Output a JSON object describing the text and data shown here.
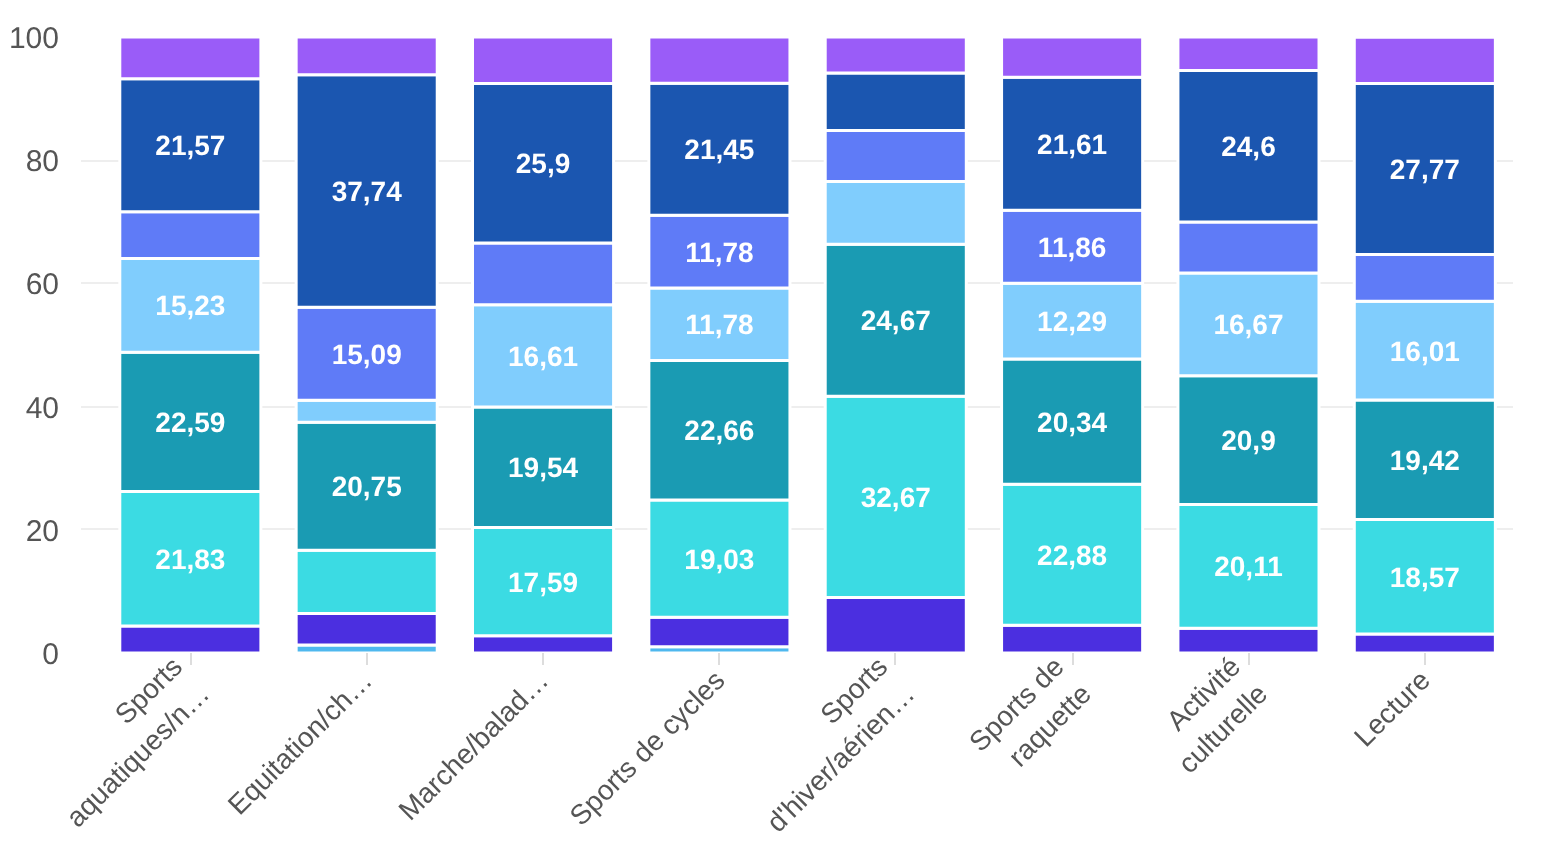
{
  "chart_data": {
    "type": "bar",
    "stacked": true,
    "categories": [
      "Sports\naquatiques/n…",
      "Equitation/ch…",
      "Marche/balad…",
      "Sports de cycles",
      "Sports\nd'hiver/aérien…",
      "Sports de\nraquette",
      "Activité\nculturelle",
      "Lecture"
    ],
    "series": [
      {
        "color": "#4fb8ee",
        "values": [
          null,
          1.3,
          null,
          1.0,
          null,
          null,
          null,
          null
        ],
        "value_labels": [
          null,
          null,
          null,
          null,
          null,
          null,
          null,
          null
        ]
      },
      {
        "color": "#4b2fe0",
        "values": [
          4.4,
          5.1,
          2.8,
          4.8,
          9.0,
          4.5,
          4.0,
          3.1
        ],
        "value_labels": [
          null,
          null,
          null,
          null,
          null,
          null,
          null,
          null
        ]
      },
      {
        "color": "#3bdbe3",
        "values": [
          21.83,
          10.3,
          17.59,
          19.03,
          32.67,
          22.88,
          20.11,
          18.57
        ],
        "value_labels": [
          "21,83",
          null,
          "17,59",
          "19,03",
          "32,67",
          "22,88",
          "20,11",
          "18,57"
        ]
      },
      {
        "color": "#1a9bb3",
        "values": [
          22.59,
          20.75,
          19.54,
          22.66,
          24.67,
          20.34,
          20.9,
          19.42
        ],
        "value_labels": [
          "22,59",
          "20,75",
          "19,54",
          "22,66",
          "24,67",
          "20,34",
          "20,9",
          "19,42"
        ]
      },
      {
        "color": "#80cdfd",
        "values": [
          15.23,
          3.6,
          16.61,
          11.78,
          10.2,
          12.29,
          16.67,
          16.01
        ],
        "value_labels": [
          "15,23",
          null,
          "16,61",
          "11,78",
          null,
          "12,29",
          "16,67",
          "16,01"
        ]
      },
      {
        "color": "#5f7bf7",
        "values": [
          7.6,
          15.09,
          10.0,
          11.78,
          8.3,
          11.86,
          8.3,
          7.6
        ],
        "value_labels": [
          null,
          "15,09",
          null,
          "11,78",
          null,
          "11,86",
          null,
          null
        ]
      },
      {
        "color": "#1b56b0",
        "values": [
          21.57,
          37.74,
          25.9,
          21.45,
          9.3,
          21.61,
          24.6,
          27.77
        ],
        "value_labels": [
          "21,57",
          "37,74",
          "25,9",
          "21,45",
          null,
          "21,61",
          "24,6",
          "27,77"
        ]
      },
      {
        "color": "#9a5cf8",
        "values": [
          6.8,
          6.1,
          7.6,
          7.5,
          5.9,
          6.5,
          5.4,
          7.5
        ],
        "value_labels": [
          null,
          null,
          null,
          null,
          null,
          null,
          null,
          null
        ]
      }
    ],
    "ylim": [
      0,
      100
    ],
    "yticks": [
      0,
      20,
      40,
      60,
      80,
      100
    ],
    "grid": "y"
  }
}
